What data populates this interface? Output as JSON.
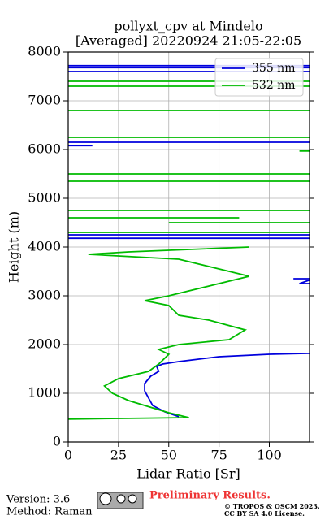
{
  "chart_data": {
    "type": "line",
    "title": [
      "pollyxt_cpv at Mindelo",
      "[Averaged] 20220924 21:05-22:05"
    ],
    "x_label": "Lidar Ratio [Sr]",
    "y_label": "Height (m)",
    "xlim": [
      0,
      120
    ],
    "ylim": [
      0,
      8000
    ],
    "xticks": [
      0,
      25,
      50,
      75,
      100
    ],
    "yticks": [
      0,
      1000,
      2000,
      3000,
      4000,
      5000,
      6000,
      7000,
      8000
    ],
    "grid": true,
    "legend": "upper right",
    "series": [
      {
        "name": "355 nm",
        "color": "#0000dd",
        "x": [
          55,
          48,
          42,
          40,
          38,
          38,
          41,
          45,
          44,
          47,
          55,
          75,
          100,
          122,
          null,
          112,
          122,
          115,
          122,
          null,
          0,
          122,
          null,
          0,
          122,
          null,
          0,
          122,
          null,
          0,
          12,
          null,
          0,
          122,
          null,
          0,
          122,
          null,
          0,
          122
        ],
        "y": [
          520,
          620,
          750,
          900,
          1050,
          1200,
          1350,
          1450,
          1550,
          1600,
          1650,
          1750,
          1800,
          1820,
          null,
          3350,
          3350,
          3250,
          3250,
          null,
          4180,
          4180,
          null,
          4250,
          4250,
          null,
          6150,
          6150,
          null,
          6080,
          6080,
          null,
          7600,
          7600,
          null,
          7680,
          7680,
          null,
          7720,
          7720
        ]
      },
      {
        "name": "532 nm",
        "color": "#00bb00",
        "x": [
          0,
          60,
          50,
          42,
          30,
          22,
          18,
          25,
          40,
          45,
          50,
          45,
          55,
          80,
          88,
          70,
          55,
          50,
          38,
          50,
          60,
          75,
          90,
          70,
          60,
          55,
          10,
          30,
          90,
          null,
          0,
          122,
          null,
          50,
          122,
          null,
          0,
          85,
          null,
          0,
          122,
          null,
          0,
          122,
          null,
          0,
          122,
          null,
          115,
          122,
          null,
          0,
          122,
          null,
          0,
          122,
          null,
          0,
          122,
          null,
          0,
          122
        ],
        "y": [
          470,
          500,
          600,
          700,
          850,
          1000,
          1150,
          1300,
          1450,
          1600,
          1800,
          1900,
          2000,
          2100,
          2300,
          2500,
          2600,
          2800,
          2900,
          3000,
          3100,
          3250,
          3400,
          3600,
          3700,
          3750,
          3850,
          3900,
          4000,
          null,
          4300,
          4300,
          null,
          4500,
          4500,
          null,
          4600,
          4600,
          null,
          4750,
          4750,
          null,
          5350,
          5350,
          null,
          5500,
          5500,
          null,
          5970,
          5970,
          null,
          6250,
          6250,
          null,
          6800,
          6800,
          null,
          7300,
          7300,
          null,
          7400,
          7400
        ]
      }
    ]
  },
  "footer": {
    "version": "Version: 3.6",
    "method": "Method: Raman",
    "status": "Preliminary Results.",
    "copyright": "© TROPOS & OSCM 2023.",
    "license": "CC BY SA 4.0 License."
  }
}
